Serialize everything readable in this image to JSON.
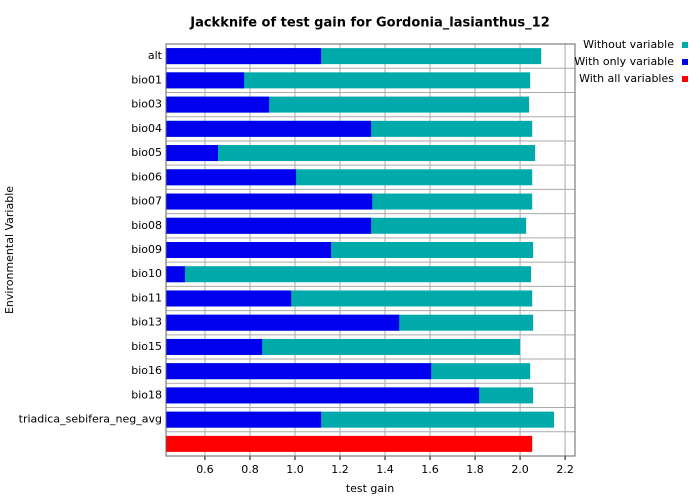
{
  "chart_data": {
    "type": "bar",
    "orientation": "horizontal",
    "overlay": true,
    "title": "Jackknife of test gain for Gordonia_lasianthus_12",
    "x_label": "test gain",
    "y_label": "Environmental Variable",
    "categories": [
      "alt",
      "bio01",
      "bio03",
      "bio04",
      "bio05",
      "bio06",
      "bio07",
      "bio08",
      "bio09",
      "bio10",
      "bio11",
      "bio13",
      "bio15",
      "bio16",
      "bio18",
      "triadica_sebifera_neg_avg",
      null
    ],
    "series": [
      {
        "name": "Without variable",
        "color": "#00aaaa",
        "values": [
          2.094,
          2.045,
          2.04,
          2.054,
          2.067,
          2.054,
          2.054,
          2.027,
          2.058,
          2.049,
          2.054,
          2.058,
          2.0,
          2.045,
          2.058,
          2.151,
          null
        ]
      },
      {
        "name": "With only variable",
        "color": "#0000ee",
        "values": [
          1.116,
          0.774,
          0.885,
          1.338,
          0.658,
          1.005,
          1.343,
          1.338,
          1.16,
          0.511,
          0.983,
          1.463,
          0.854,
          1.605,
          1.818,
          1.116,
          null
        ]
      },
      {
        "name": "With all variables",
        "color": "#ff0000",
        "values": [
          null,
          null,
          null,
          null,
          null,
          null,
          null,
          null,
          null,
          null,
          null,
          null,
          null,
          null,
          null,
          null,
          2.054
        ]
      }
    ],
    "xlim": [
      0.427,
      2.244
    ],
    "xticks": [
      0.6,
      0.8,
      {
        "value": 1,
        "label": "1.0"
      },
      1.2,
      1.4,
      1.6,
      1.8,
      {
        "value": 2,
        "label": "2.0"
      },
      2.2
    ],
    "grid": true,
    "legend": "right"
  }
}
